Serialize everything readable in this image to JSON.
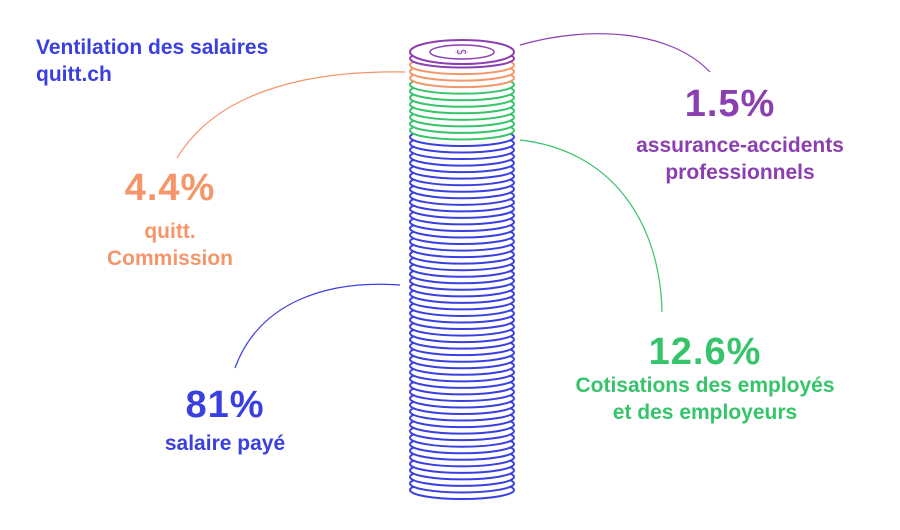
{
  "header": {
    "title_line1": "Ventilation des salaires",
    "title_line2": "quitt.ch",
    "title_color": "#3a3fe0"
  },
  "chart_data": {
    "type": "pie",
    "title": "Ventilation des salaires",
    "categories": [
      "salaire payé",
      "Cotisations des employés et des employeurs",
      "quitt. Commission",
      "assurance-accidents professionnels"
    ],
    "series": [
      {
        "values": [
          81,
          12.6,
          4.4,
          1.5
        ]
      }
    ],
    "unit": "%"
  },
  "segments": [
    {
      "key": "salary",
      "pct": "81%",
      "label_line1": "salaire payé",
      "label_line2": "",
      "color": "#3a3fe0"
    },
    {
      "key": "contrib",
      "pct": "12.6%",
      "label_line1": "Cotisations des employés",
      "label_line2": "et des employeurs",
      "color": "#36c46a"
    },
    {
      "key": "commission",
      "pct": "4.4%",
      "label_line1": "quitt.",
      "label_line2": "Commission",
      "color": "#f4956a"
    },
    {
      "key": "insurance",
      "pct": "1.5%",
      "label_line1": "assurance-accidents",
      "label_line2": "professionnels",
      "color": "#8b3fb0"
    }
  ],
  "icons": {
    "coin_top": "dollar-sign-icon"
  }
}
